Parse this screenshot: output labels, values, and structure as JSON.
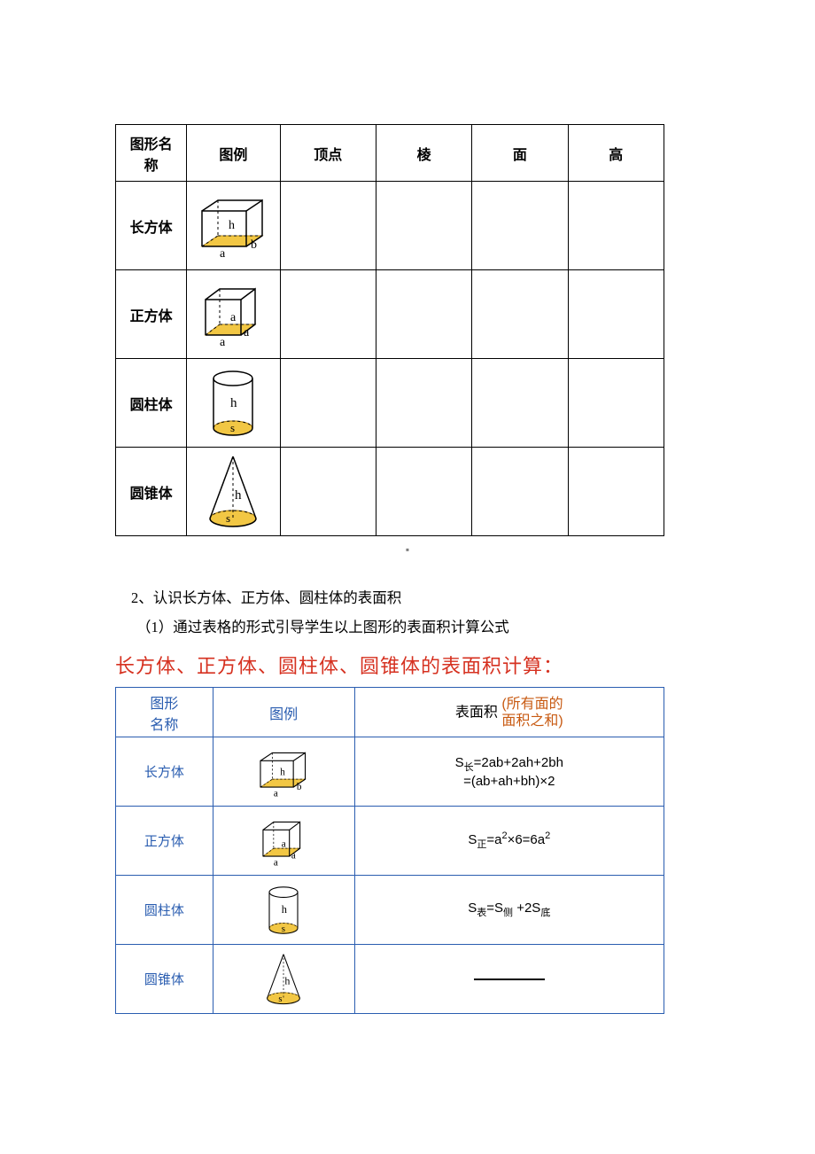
{
  "table1": {
    "headers": [
      "图形名\n称",
      "图例",
      "顶点",
      "棱",
      "面",
      "高"
    ],
    "rows": [
      {
        "name": "长方体"
      },
      {
        "name": "正方体"
      },
      {
        "name": "圆柱体"
      },
      {
        "name": "圆锥体"
      }
    ]
  },
  "dot": "▪",
  "para2": "2、认识长方体、正方体、圆柱体的表面积",
  "para2_1": "（1）通过表格的形式引导学生以上图形的表面积计算公式",
  "red_heading": "长方体、正方体、圆柱体、圆锥体的表面积计算：",
  "table2": {
    "headers": {
      "name": "图形\n名称",
      "fig": "图例",
      "formula_prefix": "表面积",
      "formula_note": "(所有面的\n面积之和)"
    },
    "rows": [
      {
        "name": "长方体",
        "formula_html": "S<span class='sub'>长</span>=2ab+2ah+2bh<br>=(ab+ah+bh)×2"
      },
      {
        "name": "正方体",
        "formula_html": "S<span class='sub'>正</span>=a<span class='sup'>2</span>×6=6a<span class='sup'>2</span>"
      },
      {
        "name": "圆柱体",
        "formula_html": "S<span class='sub'>表</span>=S<span class='sub'>侧</span> +2S<span class='sub'>底</span>"
      },
      {
        "name": "圆锥体",
        "formula_html": "<span class='blank-line'></span>"
      }
    ]
  },
  "colors": {
    "base_fill": "#f2c744",
    "base_stroke": "#b58a1a",
    "line": "#000000",
    "t2_border": "#2a5db0",
    "red": "#d63120",
    "orange": "#c85a12"
  },
  "svg_labels": {
    "cuboid": {
      "a": "a",
      "b": "b",
      "h": "h"
    },
    "cube": {
      "a": "a"
    },
    "cyl": {
      "h": "h",
      "s": "s"
    },
    "cone": {
      "h": "h",
      "s": "s"
    }
  }
}
